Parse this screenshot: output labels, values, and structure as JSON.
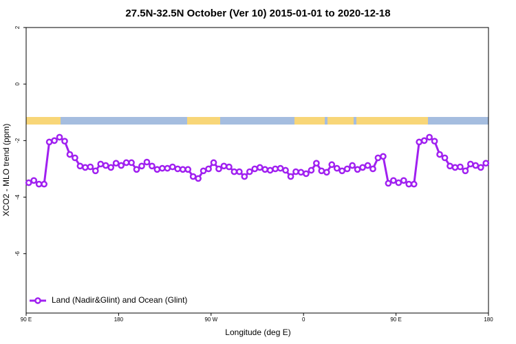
{
  "chart_data": {
    "type": "line",
    "title": "27.5N-32.5N October (Ver 10)   2015-01-01 to 2020-12-18",
    "x_label": "Longitude (deg E)",
    "y_label": "XCO2 - MLO trend (ppm)",
    "xlim": [
      90,
      540
    ],
    "xticks": [
      {
        "value": 90,
        "label": "90 E"
      },
      180,
      {
        "value": 270,
        "label": "90 W"
      },
      {
        "value": 360,
        "label": "0"
      },
      {
        "value": 450,
        "label": "90 E"
      },
      {
        "value": 540,
        "label": "180"
      }
    ],
    "ylim": [
      -8.1,
      2
    ],
    "yticks": [
      2,
      0,
      -2,
      -4,
      -6
    ],
    "legend": "bottom-left",
    "x": [
      92.5,
      97.5,
      102.5,
      107.5,
      112.5,
      117.5,
      122.5,
      127.5,
      132.5,
      137.5,
      142.5,
      147.5,
      152.5,
      157.5,
      162.5,
      167.5,
      172.5,
      177.5,
      182.5,
      187.5,
      192.5,
      197.5,
      202.5,
      207.5,
      212.5,
      217.5,
      222.5,
      227.5,
      232.5,
      237.5,
      242.5,
      247.5,
      252.5,
      257.5,
      262.5,
      267.5,
      272.5,
      277.5,
      282.5,
      287.5,
      292.5,
      297.5,
      302.5,
      307.5,
      312.5,
      317.5,
      322.5,
      327.5,
      332.5,
      337.5,
      342.5,
      347.5,
      352.5,
      357.5,
      362.5,
      367.5,
      372.5,
      377.5,
      382.5,
      387.5,
      392.5,
      397.5,
      402.5,
      407.5,
      412.5,
      417.5,
      422.5,
      427.5,
      432.5,
      437.5,
      442.5,
      447.5,
      452.5,
      457.5,
      462.5,
      467.5,
      472.5,
      477.5,
      482.5,
      487.5,
      492.5,
      497.5,
      502.5,
      507.5,
      512.5,
      517.5,
      522.5,
      527.5,
      532.5,
      537.5
    ],
    "series": [
      {
        "name": "Land (Nadir&Glint) and Ocean (Glint)",
        "color": "#a020f0",
        "values": [
          -3.49,
          -3.41,
          -3.54,
          -3.54,
          -2.05,
          -2.0,
          -1.88,
          -2.02,
          -2.49,
          -2.61,
          -2.9,
          -2.95,
          -2.93,
          -3.07,
          -2.83,
          -2.88,
          -2.95,
          -2.8,
          -2.88,
          -2.78,
          -2.78,
          -3.02,
          -2.9,
          -2.76,
          -2.9,
          -3.02,
          -2.98,
          -2.98,
          -2.93,
          -3.0,
          -3.02,
          -3.02,
          -3.27,
          -3.34,
          -3.07,
          -3.0,
          -2.78,
          -3.0,
          -2.9,
          -2.93,
          -3.1,
          -3.1,
          -3.27,
          -3.1,
          -3.0,
          -2.95,
          -3.02,
          -3.05,
          -3.0,
          -2.98,
          -3.05,
          -3.27,
          -3.1,
          -3.12,
          -3.17,
          -3.05,
          -2.8,
          -3.07,
          -3.12,
          -2.85,
          -2.98,
          -3.07,
          -3.0,
          -2.88,
          -3.02,
          -2.95,
          -2.88,
          -3.0,
          -2.61,
          -2.56,
          -3.51,
          -3.41,
          -3.49,
          -3.41,
          -3.54,
          -3.54,
          -2.05,
          -2.0,
          -1.88,
          -2.02,
          -2.49,
          -2.61,
          -2.9,
          -2.95,
          -2.93,
          -3.07,
          -2.83,
          -2.88,
          -2.95,
          -2.8
        ]
      }
    ]
  }
}
